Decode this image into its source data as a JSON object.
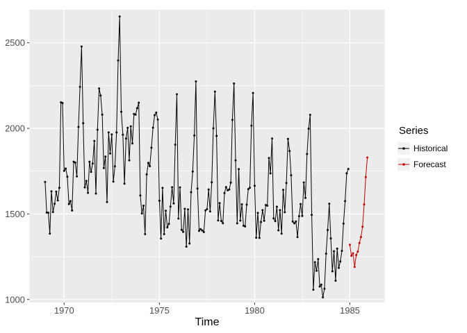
{
  "chart_data": {
    "type": "line",
    "title": "",
    "xlabel": "Time",
    "ylabel": "",
    "x_ticks": [
      1970,
      1975,
      1980,
      1985
    ],
    "x_tick_labels": [
      "1970",
      "1975",
      "1980",
      "1985"
    ],
    "x_minor_ticks": [
      1972.5,
      1977.5,
      1982.5
    ],
    "y_ticks": [
      1000,
      1500,
      2000,
      2500
    ],
    "y_tick_labels": [
      "1000",
      "1500",
      "2000",
      "2500"
    ],
    "y_minor_ticks": [
      1250,
      1750,
      2250
    ],
    "xlim": [
      1968.15,
      1986.76
    ],
    "ylim": [
      960,
      2690
    ],
    "grid": true,
    "panel_bg": "#EBEBEB",
    "grid_color": "#FFFFFF",
    "axis_text_color": "#4D4D4D",
    "tick_color": "#333333",
    "legend": {
      "title": "Series",
      "position": "right",
      "key_bg": "#F2F2F2",
      "entries": [
        {
          "label": "Historical",
          "color": "#000000"
        },
        {
          "label": "Forecast",
          "color": "#C00000"
        }
      ]
    },
    "series": [
      {
        "name": "Historical",
        "color": "#000000",
        "start_year": 1969.0,
        "frequency": "monthly",
        "values": [
          1687,
          1508,
          1507,
          1385,
          1632,
          1511,
          1559,
          1630,
          1579,
          1653,
          2152,
          2148,
          1752,
          1765,
          1717,
          1558,
          1575,
          1520,
          1805,
          1800,
          1719,
          2008,
          2242,
          2478,
          2030,
          1655,
          1693,
          1623,
          1805,
          1746,
          1795,
          1926,
          1619,
          1992,
          2233,
          2192,
          2080,
          1768,
          1835,
          1569,
          1976,
          1853,
          1965,
          1689,
          1778,
          1976,
          2397,
          2654,
          2097,
          1963,
          1677,
          1941,
          2003,
          1813,
          2012,
          1912,
          2084,
          2080,
          2118,
          2150,
          1608,
          1503,
          1548,
          1382,
          1731,
          1798,
          1779,
          1887,
          2004,
          2077,
          2092,
          2051,
          1577,
          1356,
          1652,
          1382,
          1519,
          1421,
          1442,
          1543,
          1656,
          1561,
          1905,
          2199,
          1473,
          1655,
          1407,
          1395,
          1530,
          1309,
          1526,
          1327,
          1627,
          1748,
          1958,
          2274,
          1648,
          1401,
          1411,
          1403,
          1394,
          1520,
          1528,
          1643,
          1515,
          1685,
          2000,
          2215,
          1956,
          1462,
          1563,
          1459,
          1446,
          1622,
          1657,
          1638,
          1643,
          1683,
          2050,
          2262,
          1813,
          1445,
          1762,
          1461,
          1556,
          1431,
          1427,
          1554,
          1645,
          1653,
          2016,
          2207,
          1665,
          1361,
          1506,
          1360,
          1453,
          1522,
          1460,
          1552,
          1548,
          1827,
          1737,
          1941,
          1474,
          1458,
          1542,
          1404,
          1522,
          1385,
          1641,
          1510,
          1681,
          1938,
          1868,
          1726,
          1456,
          1445,
          1456,
          1365,
          1487,
          1558,
          1488,
          1684,
          1594,
          1850,
          1998,
          2079,
          1494,
          1057,
          1218,
          1168,
          1236,
          1076,
          1087,
          1013,
          1063,
          1268,
          1406,
          1560,
          1357,
          1165,
          1282,
          1110,
          1297,
          1185,
          1222,
          1284,
          1444,
          1575,
          1737,
          1763
        ]
      },
      {
        "name": "Forecast",
        "color": "#C00000",
        "start_year": 1985.0,
        "frequency": "monthly",
        "values": [
          1320,
          1255,
          1270,
          1190,
          1260,
          1280,
          1330,
          1365,
          1425,
          1555,
          1715,
          1830
        ]
      }
    ]
  }
}
